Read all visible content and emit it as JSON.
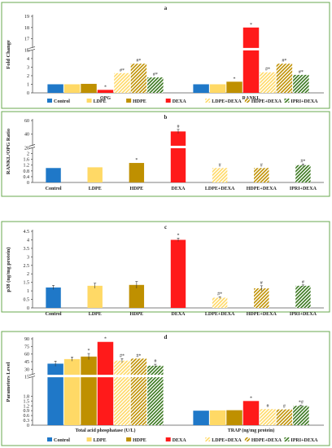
{
  "series_styles": [
    {
      "color": "#1f78c8",
      "pattern": "solid"
    },
    {
      "color": "#ffd966",
      "pattern": "solid"
    },
    {
      "color": "#bf9000",
      "pattern": "solid"
    },
    {
      "color": "#ff1a1a",
      "pattern": "solid"
    },
    {
      "color": "#ffd966",
      "pattern": "hatch"
    },
    {
      "color": "#bf9000",
      "pattern": "hatch"
    },
    {
      "color": "#38761d",
      "pattern": "hatch"
    }
  ],
  "chart_data": [
    {
      "panel": "a",
      "type": "bar",
      "ylabel": "Fold Change",
      "ylim": [
        0,
        19
      ],
      "axis_break": {
        "from": 5,
        "to": 16
      },
      "yticks": [
        0,
        1,
        2,
        3,
        4,
        5,
        16,
        17,
        18,
        19
      ],
      "categories": [
        "OPG",
        "RANKL"
      ],
      "series": [
        {
          "name": "Control",
          "values": [
            1.0,
            1.0
          ],
          "errors": [
            0,
            0
          ],
          "annot": [
            "",
            ""
          ]
        },
        {
          "name": "LDPE",
          "values": [
            1.0,
            1.0
          ],
          "errors": [
            0,
            0
          ],
          "annot": [
            "",
            ""
          ]
        },
        {
          "name": "HDPE",
          "values": [
            1.05,
            1.3
          ],
          "errors": [
            0,
            0
          ],
          "annot": [
            "",
            "*"
          ]
        },
        {
          "name": "DEXA",
          "values": [
            0.35,
            18.0
          ],
          "errors": [
            0,
            0
          ],
          "annot": [
            "*",
            "*"
          ]
        },
        {
          "name": "LDPE+DEXA",
          "values": [
            2.3,
            2.4
          ],
          "errors": [
            0,
            0
          ],
          "annot": [
            "#*",
            "#*"
          ]
        },
        {
          "name": "HDPE+DEXA",
          "values": [
            3.4,
            3.4
          ],
          "errors": [
            0,
            0
          ],
          "annot": [
            "#*",
            "#*"
          ]
        },
        {
          "name": "IPRI+DEXA",
          "values": [
            1.8,
            2.1
          ],
          "errors": [
            0,
            0
          ],
          "annot": [
            "#*",
            "#*"
          ]
        }
      ],
      "legend": true
    },
    {
      "panel": "b",
      "type": "bar",
      "ylabel": "RANKL/OPG Ratio",
      "ylim": [
        0,
        60
      ],
      "axis_break": {
        "from": 2.4,
        "to": 20
      },
      "yticks": [
        0,
        0.4,
        0.8,
        1.2,
        1.6,
        2,
        20,
        40,
        60
      ],
      "categories": [
        "Control",
        "LDPE",
        "HDPE",
        "DEXA",
        "LDPE+DEXA",
        "HDPE+DEXA",
        "IPRI+DEXA"
      ],
      "values": [
        1.0,
        1.05,
        1.35,
        44,
        1.0,
        1.0,
        1.2
      ],
      "errors": [
        0,
        0,
        0,
        3,
        0,
        0,
        0.08
      ],
      "annot": [
        "",
        "",
        "*",
        "#",
        "#",
        "#",
        "#*"
      ]
    },
    {
      "panel": "c",
      "type": "bar",
      "ylabel": "p38 (ng/mg protein)",
      "ylim": [
        0,
        4.5
      ],
      "yticks": [
        0,
        0.5,
        1,
        1.5,
        2,
        2.5,
        3,
        3.5,
        4,
        4.5
      ],
      "categories": [
        "Control",
        "LDPE",
        "HDPE",
        "DEXA",
        "LDPE+DEXA",
        "HDPE+DEXA",
        "IPRI+DEXA"
      ],
      "values": [
        1.2,
        1.3,
        1.35,
        4.0,
        0.6,
        1.15,
        1.3
      ],
      "errors": [
        0.12,
        0.15,
        0.2,
        0.1,
        0.05,
        0.15,
        0.05
      ],
      "annot": [
        "",
        "",
        "",
        "*",
        "#*",
        "#",
        "#"
      ]
    },
    {
      "panel": "d",
      "type": "bar",
      "ylabel": "Parameters Level",
      "ylim": [
        0,
        90
      ],
      "axis_break": {
        "from": 3,
        "to": 15
      },
      "yticks": [
        0,
        0.3,
        0.6,
        0.9,
        1.2,
        1.5,
        1.8,
        15,
        30,
        45,
        60,
        75,
        90
      ],
      "categories": [
        "Total acid phosphatase (U/L)",
        "TRAP (ng/mg protein)"
      ],
      "series": [
        {
          "name": "Control",
          "values": [
            41,
            0.9
          ],
          "errors": [
            5,
            0
          ],
          "annot": [
            "",
            ""
          ]
        },
        {
          "name": "LDPE",
          "values": [
            50,
            0.92
          ],
          "errors": [
            4,
            0
          ],
          "annot": [
            "",
            ""
          ]
        },
        {
          "name": "HDPE",
          "values": [
            55,
            0.93
          ],
          "errors": [
            6,
            0
          ],
          "annot": [
            "*",
            ""
          ]
        },
        {
          "name": "DEXA",
          "values": [
            84,
            1.5
          ],
          "errors": [
            0,
            0
          ],
          "annot": [
            "*",
            "*"
          ]
        },
        {
          "name": "LDPE+DEXA",
          "values": [
            47,
            1.0
          ],
          "errors": [
            4,
            0
          ],
          "annot": [
            "#*",
            "#"
          ]
        },
        {
          "name": "HDPE+DEXA",
          "values": [
            51,
            0.98
          ],
          "errors": [
            0,
            0
          ],
          "annot": [
            "#*",
            "#"
          ]
        },
        {
          "name": "IPRI+DEXA",
          "values": [
            37,
            1.2
          ],
          "errors": [
            3,
            0.05
          ],
          "annot": [
            "#",
            "*#"
          ]
        }
      ],
      "legend": true
    }
  ]
}
